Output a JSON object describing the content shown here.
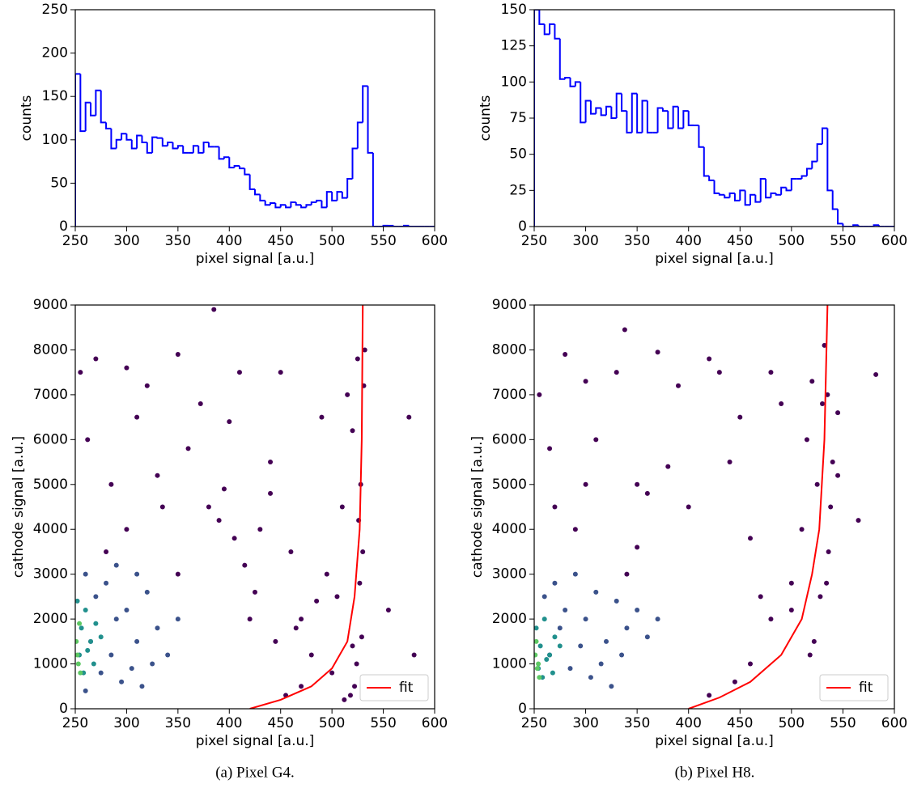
{
  "chart_data": [
    {
      "type": "histogram",
      "xlabel": "pixel signal [a.u.]",
      "ylabel": "counts",
      "color": "#0000ff",
      "bins": [
        250,
        255,
        260,
        265,
        270,
        275,
        280,
        285,
        290,
        295,
        300,
        305,
        310,
        315,
        320,
        325,
        330,
        335,
        340,
        345,
        350,
        355,
        360,
        365,
        370,
        375,
        380,
        385,
        390,
        395,
        400,
        405,
        410,
        415,
        420,
        425,
        430,
        435,
        440,
        445,
        450,
        455,
        460,
        465,
        470,
        475,
        480,
        485,
        490,
        495,
        500,
        505,
        510,
        515,
        520,
        525,
        530,
        535,
        540,
        545,
        550,
        555,
        560,
        565,
        570,
        575,
        580,
        585,
        590,
        595,
        600
      ],
      "values": [
        176,
        110,
        143,
        128,
        157,
        120,
        113,
        90,
        100,
        107,
        100,
        90,
        105,
        97,
        85,
        103,
        102,
        93,
        97,
        90,
        93,
        85,
        85,
        93,
        85,
        97,
        92,
        92,
        78,
        80,
        68,
        70,
        67,
        60,
        43,
        37,
        30,
        25,
        27,
        22,
        25,
        22,
        28,
        25,
        22,
        25,
        28,
        30,
        22,
        40,
        30,
        40,
        33,
        55,
        90,
        120,
        162,
        85,
        0,
        0,
        1,
        1,
        0,
        0,
        1,
        0,
        0,
        0,
        0,
        0
      ],
      "xlim": [
        250,
        600
      ],
      "ylim": [
        0,
        250
      ],
      "xticks": [
        250,
        300,
        350,
        400,
        450,
        500,
        550,
        600
      ],
      "yticks": [
        0,
        50,
        100,
        150,
        200,
        250
      ]
    },
    {
      "type": "histogram",
      "xlabel": "pixel signal [a.u.]",
      "ylabel": "counts",
      "color": "#0000ff",
      "bins": [
        250,
        255,
        260,
        265,
        270,
        275,
        280,
        285,
        290,
        295,
        300,
        305,
        310,
        315,
        320,
        325,
        330,
        335,
        340,
        345,
        350,
        355,
        360,
        365,
        370,
        375,
        380,
        385,
        390,
        395,
        400,
        405,
        410,
        415,
        420,
        425,
        430,
        435,
        440,
        445,
        450,
        455,
        460,
        465,
        470,
        475,
        480,
        485,
        490,
        495,
        500,
        505,
        510,
        515,
        520,
        525,
        530,
        535,
        540,
        545,
        550,
        555,
        560,
        565,
        570,
        575,
        580,
        585,
        590,
        595,
        600
      ],
      "values": [
        150,
        140,
        133,
        140,
        130,
        102,
        103,
        97,
        100,
        72,
        87,
        78,
        82,
        77,
        83,
        75,
        92,
        80,
        65,
        92,
        65,
        87,
        65,
        65,
        82,
        80,
        68,
        83,
        68,
        80,
        70,
        70,
        55,
        35,
        32,
        23,
        22,
        20,
        23,
        18,
        25,
        15,
        22,
        17,
        33,
        20,
        23,
        22,
        27,
        25,
        33,
        33,
        35,
        40,
        45,
        57,
        68,
        25,
        12,
        2,
        0,
        0,
        1,
        0,
        0,
        0,
        1,
        0,
        0,
        0
      ],
      "xlim": [
        250,
        600
      ],
      "ylim": [
        0,
        150
      ],
      "xticks": [
        250,
        300,
        350,
        400,
        450,
        500,
        550,
        600
      ],
      "yticks": [
        0,
        25,
        50,
        75,
        100,
        125,
        150
      ]
    },
    {
      "type": "scatter",
      "xlabel": "pixel signal [a.u.]",
      "ylabel": "cathode signal [a.u.]",
      "legend": "lower right",
      "points": [
        {
          "color": "#440154",
          "x": [
            255,
            262,
            270,
            285,
            300,
            310,
            320,
            335,
            350,
            360,
            372,
            385,
            390,
            400,
            410,
            420,
            430,
            440,
            450,
            460,
            470,
            480,
            490,
            500,
            505,
            510,
            515,
            520,
            525,
            528,
            530,
            532,
            527,
            529,
            531,
            526,
            524,
            522,
            518,
            512,
            520,
            575,
            580,
            555,
            470,
            455,
            440,
            350,
            330,
            380,
            395,
            405,
            415,
            425,
            445,
            465,
            485,
            495,
            300,
            280
          ],
          "y": [
            7500,
            6000,
            7800,
            5000,
            7600,
            6500,
            7200,
            4500,
            7900,
            5800,
            6800,
            8900,
            4200,
            6400,
            7500,
            2000,
            4000,
            5500,
            7500,
            3500,
            2000,
            1200,
            6500,
            800,
            2500,
            4500,
            7000,
            6200,
            7800,
            5000,
            3500,
            8000,
            2800,
            1600,
            7200,
            4200,
            1000,
            500,
            300,
            200,
            1400,
            6500,
            1200,
            2200,
            500,
            300,
            4800,
            3000,
            5200,
            4500,
            4900,
            3800,
            3200,
            2600,
            1500,
            1800,
            2400,
            3000,
            4000,
            3500
          ]
        },
        {
          "color": "#3b528b",
          "x": [
            260,
            270,
            280,
            290,
            300,
            310,
            320,
            330,
            340,
            350,
            265,
            275,
            285,
            295,
            305,
            315,
            325,
            260,
            290,
            310
          ],
          "y": [
            3000,
            2500,
            2800,
            2000,
            2200,
            1500,
            2600,
            1800,
            1200,
            2000,
            1500,
            800,
            1200,
            600,
            900,
            500,
            1000,
            400,
            3200,
            3000
          ]
        },
        {
          "color": "#21908d",
          "x": [
            252,
            256,
            260,
            265,
            270,
            254,
            258,
            262,
            268,
            275
          ],
          "y": [
            2400,
            1800,
            2200,
            1500,
            1900,
            1200,
            800,
            1300,
            1000,
            1600
          ]
        },
        {
          "color": "#5dc863",
          "x": [
            251,
            253,
            255,
            252,
            254
          ],
          "y": [
            1500,
            1000,
            800,
            1200,
            1900
          ]
        }
      ],
      "series": [
        {
          "name": "fit",
          "color": "#ff0000",
          "x": [
            420,
            450,
            480,
            500,
            515,
            522,
            527,
            529,
            530
          ],
          "y": [
            0,
            200,
            500,
            900,
            1500,
            2500,
            4000,
            6000,
            9000
          ]
        }
      ],
      "xlim": [
        250,
        600
      ],
      "ylim": [
        0,
        9000
      ],
      "xticks": [
        250,
        300,
        350,
        400,
        450,
        500,
        550,
        600
      ],
      "yticks": [
        0,
        1000,
        2000,
        3000,
        4000,
        5000,
        6000,
        7000,
        8000,
        9000
      ]
    },
    {
      "type": "scatter",
      "xlabel": "pixel signal [a.u.]",
      "ylabel": "cathode signal [a.u.]",
      "legend": "lower right",
      "points": [
        {
          "color": "#440154",
          "x": [
            255,
            265,
            280,
            300,
            310,
            330,
            338,
            350,
            370,
            390,
            400,
            420,
            430,
            440,
            450,
            460,
            470,
            480,
            490,
            500,
            510,
            515,
            520,
            525,
            530,
            532,
            535,
            538,
            540,
            545,
            536,
            534,
            528,
            522,
            518,
            565,
            582,
            545,
            460,
            445,
            420,
            380,
            360,
            350,
            340,
            300,
            290,
            270,
            500,
            480
          ],
          "y": [
            7000,
            5800,
            7900,
            7300,
            6000,
            7500,
            8450,
            5000,
            7950,
            7200,
            4500,
            7800,
            7500,
            5500,
            6500,
            3800,
            2500,
            7500,
            6800,
            2200,
            4000,
            6000,
            7300,
            5000,
            6800,
            8100,
            7000,
            4500,
            5500,
            5200,
            3500,
            2800,
            2500,
            1500,
            1200,
            4200,
            7450,
            6600,
            1000,
            600,
            300,
            5400,
            4800,
            3600,
            3000,
            5000,
            4000,
            4500,
            2800,
            2000
          ]
        },
        {
          "color": "#3b528b",
          "x": [
            260,
            270,
            280,
            290,
            300,
            310,
            320,
            330,
            340,
            350,
            360,
            265,
            275,
            285,
            295,
            305,
            315,
            325,
            335,
            370
          ],
          "y": [
            2500,
            2800,
            2200,
            3000,
            2000,
            2600,
            1500,
            2400,
            1800,
            2200,
            1600,
            1200,
            1800,
            900,
            1400,
            700,
            1000,
            500,
            1200,
            2000
          ]
        },
        {
          "color": "#21908d",
          "x": [
            252,
            256,
            260,
            265,
            270,
            254,
            258,
            262,
            268,
            275
          ],
          "y": [
            1800,
            1400,
            2000,
            1200,
            1600,
            900,
            700,
            1100,
            800,
            1400
          ]
        },
        {
          "color": "#5dc863",
          "x": [
            251,
            253,
            255,
            252,
            254
          ],
          "y": [
            1200,
            900,
            700,
            1500,
            1000
          ]
        }
      ],
      "series": [
        {
          "name": "fit",
          "color": "#ff0000",
          "x": [
            400,
            430,
            460,
            490,
            510,
            520,
            527,
            532,
            535
          ],
          "y": [
            0,
            250,
            600,
            1200,
            2000,
            3000,
            4000,
            6000,
            9000
          ]
        }
      ],
      "xlim": [
        250,
        600
      ],
      "ylim": [
        0,
        9000
      ],
      "xticks": [
        250,
        300,
        350,
        400,
        450,
        500,
        550,
        600
      ],
      "yticks": [
        0,
        1000,
        2000,
        3000,
        4000,
        5000,
        6000,
        7000,
        8000,
        9000
      ]
    }
  ],
  "captions": [
    "(a) Pixel G4.",
    "(b) Pixel H8."
  ]
}
